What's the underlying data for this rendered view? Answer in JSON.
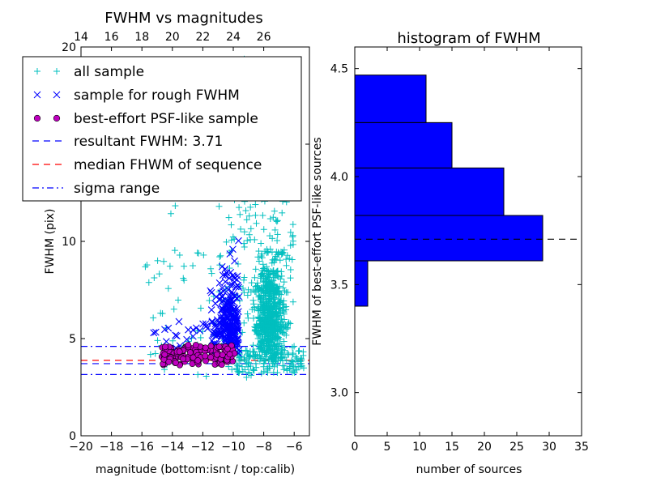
{
  "chart_data": [
    {
      "type": "scatter",
      "title": "FWHM vs magnitudes",
      "xlabel": "magnitude (bottom:isnt / top:calib)",
      "ylabel": "FWHM (pix)",
      "xlim": [
        -20,
        -5
      ],
      "ylim": [
        0,
        20
      ],
      "x_ticks": [
        -20,
        -18,
        -16,
        -14,
        -12,
        -10,
        -8,
        -6
      ],
      "x_tick_labels": [
        "−20",
        "−18",
        "−16",
        "−14",
        "−12",
        "−10",
        "−8",
        "−6"
      ],
      "y_ticks": [
        0,
        5,
        10,
        15,
        20
      ],
      "y_tick_labels": [
        "0",
        "5",
        "10",
        "15",
        "20"
      ],
      "top_axis": {
        "ticks": [
          14,
          16,
          18,
          20,
          22,
          24,
          26
        ],
        "tick_labels": [
          "14",
          "16",
          "18",
          "20",
          "22",
          "24",
          "26"
        ],
        "calib_offset": 34
      },
      "grid": false,
      "legend_position": "upper-left",
      "series": [
        {
          "name": "all sample",
          "marker": "+",
          "color": "#00bfbf",
          "distribution": {
            "x_range": [
              -16,
              -5.5
            ],
            "y_range": [
              2,
              20
            ],
            "concentration": "x=-8 to -6, y=3-12"
          }
        },
        {
          "name": "sample for rough FWHM",
          "marker": "x",
          "color": "#0000ff",
          "distribution": {
            "x_range": [
              -15.5,
              -9.5
            ],
            "y_range": [
              3.5,
              15
            ]
          }
        },
        {
          "name": "best-effort PSF-like sample",
          "marker": "o",
          "color": "#bf00bf",
          "distribution": {
            "x_range": [
              -14.8,
              -9.8
            ],
            "y_range": [
              3.6,
              4.7
            ]
          }
        }
      ],
      "reference_lines": [
        {
          "name": "resultant FWHM: 3.71",
          "y": 3.71,
          "style": "dashed",
          "color": "#0000ff"
        },
        {
          "name": "median FHWM of sequence",
          "y": 3.88,
          "style": "dashed",
          "color": "#ff0000"
        },
        {
          "name": "sigma range",
          "y": 4.6,
          "style": "dashdot",
          "color": "#0000ff"
        },
        {
          "name": "sigma range",
          "y": 3.15,
          "style": "dashdot",
          "color": "#0000ff"
        }
      ]
    },
    {
      "type": "bar",
      "orientation": "horizontal",
      "title": "histogram of FWHM",
      "xlabel": "number of sources",
      "ylabel": "FWHM of best-effort PSF-like sources",
      "xlim": [
        0,
        35
      ],
      "ylim": [
        2.8,
        4.6
      ],
      "x_ticks": [
        0,
        5,
        10,
        15,
        20,
        25,
        30,
        35
      ],
      "x_tick_labels": [
        "0",
        "5",
        "10",
        "15",
        "20",
        "25",
        "30",
        "35"
      ],
      "y_ticks": [
        3.0,
        3.5,
        4.0,
        4.5
      ],
      "y_tick_labels": [
        "3.0",
        "3.5",
        "4.0",
        "4.5"
      ],
      "bin_edges": [
        3.4,
        3.61,
        3.82,
        4.04,
        4.25,
        4.47
      ],
      "counts": [
        2,
        29,
        23,
        15,
        11
      ],
      "bar_color": "#0000ff",
      "reference_line": {
        "y": 3.71,
        "style": "dashed",
        "color": "#000000"
      }
    }
  ]
}
